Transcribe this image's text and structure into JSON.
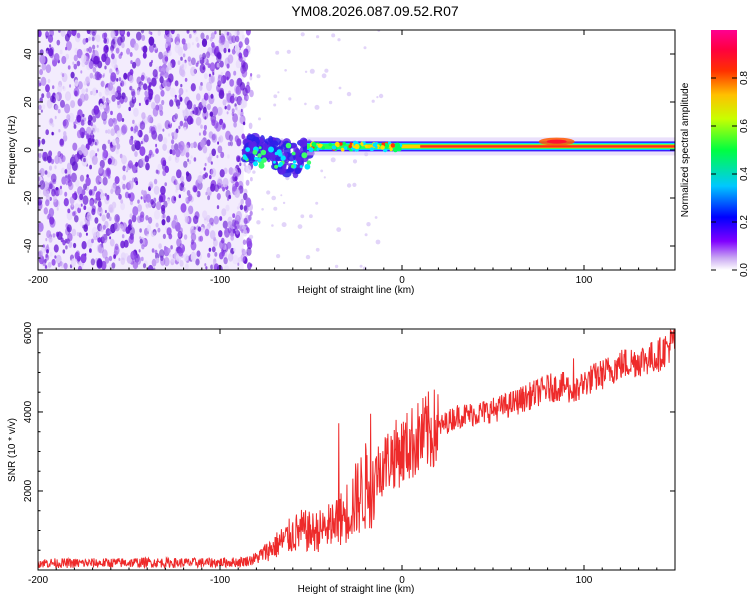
{
  "title": "YM08.2026.087.09.52.R07",
  "chart_data": [
    {
      "type": "heatmap",
      "title": "YM08.2026.087.09.52.R07",
      "xlabel": "Height of straight line (km)",
      "ylabel": "Frequency (Hz)",
      "xlim": [
        -200,
        150
      ],
      "ylim": [
        -50,
        50
      ],
      "xticks": [
        -200,
        -100,
        0,
        100
      ],
      "yticks": [
        -40,
        -20,
        0,
        20,
        40
      ],
      "colorbar": {
        "label": "Normalized spectral amplitude",
        "range": [
          0,
          1
        ],
        "ticks": [
          0,
          0.2,
          0.4,
          0.6,
          0.8
        ],
        "tick_labels": [
          "0.0",
          "0.2",
          "0.4",
          "0.6",
          "0.8"
        ],
        "colormap": [
          "#ffffff",
          "#8000ff",
          "#0000ff",
          "#00ffff",
          "#00ff00",
          "#ffff00",
          "#ff8000",
          "#ff0000",
          "#ff0080"
        ]
      },
      "features": [
        {
          "region": "noise",
          "x_range": [
            -200,
            -87
          ],
          "freq_range": [
            -50,
            50
          ],
          "amplitude": 0.12
        },
        {
          "region": "carrier_onset",
          "x_range": [
            -87,
            -50
          ],
          "freq_center": [
            -3,
            5
          ],
          "amplitude": 0.4
        },
        {
          "region": "carrier",
          "x_range": [
            -50,
            150
          ],
          "freq": 1.5,
          "amplitude": 0.95
        }
      ]
    },
    {
      "type": "line",
      "xlabel": "Height of straight line (km)",
      "ylabel": "SNR (10 * v/v)",
      "xlim": [
        -200,
        150
      ],
      "ylim": [
        0,
        6100
      ],
      "xticks": [
        -200,
        -100,
        0,
        100
      ],
      "yticks": [
        2000,
        4000,
        6000
      ],
      "series": [
        {
          "name": "SNR",
          "color": "#ee2a2a",
          "x": [
            -200,
            -180,
            -160,
            -140,
            -120,
            -100,
            -90,
            -85,
            -80,
            -75,
            -70,
            -65,
            -60,
            -55,
            -50,
            -45,
            -40,
            -35,
            -30,
            -25,
            -20,
            -15,
            -10,
            -5,
            0,
            5,
            10,
            15,
            20,
            25,
            30,
            40,
            50,
            60,
            70,
            80,
            90,
            95,
            100,
            110,
            120,
            130,
            140,
            150
          ],
          "values": [
            180,
            170,
            180,
            190,
            180,
            190,
            200,
            230,
            300,
            450,
            600,
            750,
            900,
            1000,
            950,
            1000,
            1100,
            1200,
            1500,
            1800,
            2100,
            2400,
            2700,
            2900,
            3000,
            3200,
            3350,
            3500,
            3600,
            3750,
            3900,
            3950,
            4050,
            4200,
            4400,
            4600,
            4650,
            4450,
            4750,
            4950,
            5200,
            5300,
            5400,
            5800
          ]
        }
      ]
    }
  ]
}
